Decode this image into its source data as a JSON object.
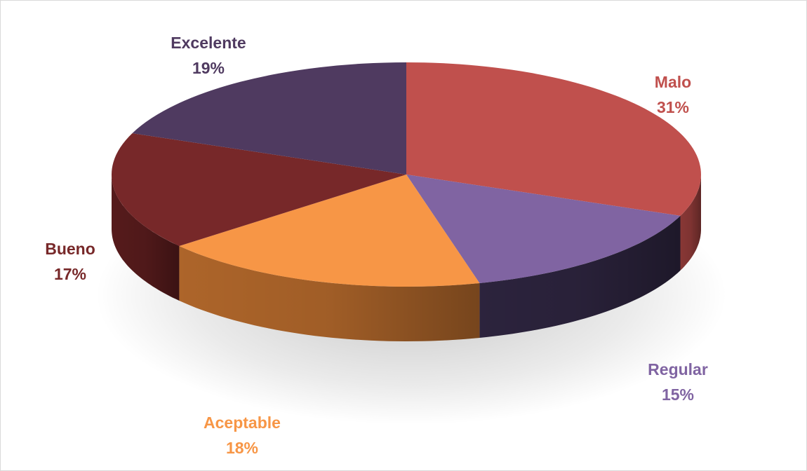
{
  "chart_data": {
    "type": "pie",
    "style": "3d",
    "legend": "none",
    "slices": [
      {
        "name": "Malo",
        "value": 31,
        "label": "31%",
        "color": "#C0504D",
        "side_color": "#8F3A38",
        "text_color": "#C0504D"
      },
      {
        "name": "Regular",
        "value": 15,
        "label": "15%",
        "color": "#8064A2",
        "side_color": "#2E2540",
        "text_color": "#8064A2"
      },
      {
        "name": "Aceptable",
        "value": 18,
        "label": "18%",
        "color": "#F79646",
        "side_color": "#B66A2C",
        "text_color": "#F79646"
      },
      {
        "name": "Bueno",
        "value": 17,
        "label": "17%",
        "color": "#772829",
        "side_color": "#5A1C1D",
        "text_color": "#772829"
      },
      {
        "name": "Excelente",
        "value": 19,
        "label": "19%",
        "color": "#4F3A60",
        "side_color": "#3A2A47",
        "text_color": "#4F3A60"
      }
    ]
  }
}
